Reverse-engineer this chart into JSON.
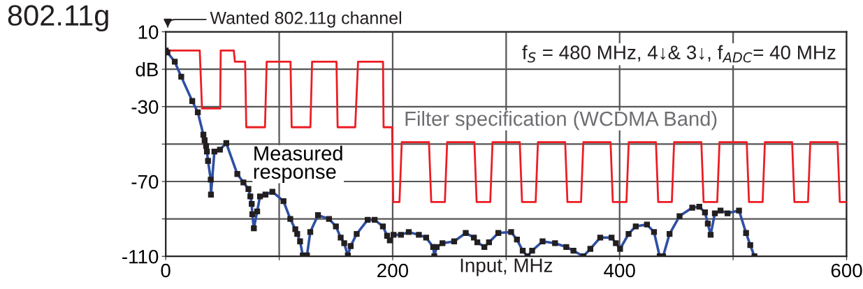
{
  "chart_data": {
    "type": "line",
    "title": "802.11g",
    "xlabel": "Input, MHz",
    "xlim": [
      0,
      600
    ],
    "ylim": [
      -110,
      10
    ],
    "xticks": [
      0,
      {
        "value": 100,
        "label": null
      },
      200,
      {
        "value": 300,
        "label": null
      },
      400,
      {
        "value": 500,
        "label": null
      },
      600
    ],
    "yticks": [
      10,
      {
        "value": -10,
        "label": "dB"
      },
      -30,
      {
        "value": -50,
        "label": null
      },
      -70,
      {
        "value": -90,
        "label": null
      },
      -110
    ],
    "grid": true,
    "legend": false,
    "marker": "square",
    "line_style": "solid",
    "annotations": [
      "Wanted 802.11g channel",
      "f$_{S}$ = 480 MHz, 4↓& 3↓, f$_{ADC}$= 40 MHz"
    ],
    "series": [
      {
        "name": "Filter specification (WCDMA Band)",
        "color": "#ed1c24",
        "marker": "none",
        "x": [
          0,
          30,
          32,
          48,
          48.5,
          60,
          61,
          70,
          71,
          87.5,
          89,
          110,
          111,
          127.5,
          129,
          150.5,
          151.5,
          167,
          169.5,
          191.5,
          192,
          199.5,
          200.5,
          206,
          208,
          232,
          234,
          246,
          248,
          272,
          274,
          286,
          288,
          312,
          314,
          326,
          328,
          352,
          354,
          366,
          368,
          392,
          394,
          406,
          408,
          432,
          434,
          446,
          448,
          472,
          474,
          486,
          488,
          512,
          514,
          526,
          528,
          552,
          554,
          566,
          568,
          592,
          594,
          600
        ],
        "values": [
          0,
          0,
          -31,
          -31,
          0,
          0,
          -6,
          -6,
          -41,
          -41,
          -6,
          -6,
          -41,
          -41,
          -6,
          -6,
          -41,
          -41,
          -6,
          -6,
          -41,
          -41,
          -81,
          -81,
          -49,
          -49,
          -81,
          -81,
          -49,
          -49,
          -81,
          -81,
          -49,
          -49,
          -81,
          -81,
          -49,
          -49,
          -81,
          -81,
          -49,
          -49,
          -81,
          -81,
          -49,
          -49,
          -81,
          -81,
          -49,
          -49,
          -81,
          -81,
          -49,
          -49,
          -81,
          -81,
          -49,
          -49,
          -81,
          -81,
          -49,
          -49,
          -81,
          -81
        ]
      },
      {
        "name": "Measured response",
        "color": "#2e4fa3",
        "x": [
          0,
          1.5,
          8,
          13.7,
          23.4,
          28.3,
          33.2,
          34.3,
          35.6,
          36.3,
          37.3,
          39.7,
          39.9,
          42.9,
          47.8,
          53.4,
          63.1,
          68.5,
          72.9,
          74.6,
          75.8,
          76.3,
          77.7,
          80.6,
          83.1,
          87.9,
          94,
          103.8,
          109.8,
          114.2,
          115.9,
          118.4,
          120.8,
          124.5,
          127.4,
          134.2,
          143.9,
          150,
          154.2,
          157.3,
          160.5,
          163,
          168.3,
          178,
          184.1,
          191.4,
          195.1,
          197.5,
          200.8,
          207.3,
          214.2,
          223.1,
          229.5,
          235.7,
          236.7,
          238.8,
          243.9,
          254.2,
          264.4,
          271.6,
          274.6,
          280.8,
          284.9,
          293.1,
          304.4,
          309.5,
          314.6,
          318.8,
          322.9,
          332.1,
          343.1,
          353,
          359.3,
          368,
          374.2,
          382.9,
          392.9,
          396.7,
          400.4,
          407.9,
          414.2,
          424.1,
          430.3,
          435.3,
          438.3,
          444,
          452.8,
          464,
          470.2,
          475.2,
          477.7,
          480.2,
          483.9,
          488.9,
          495.1,
          505.2,
          511.4,
          515.1,
          518.8
        ],
        "values": [
          0,
          -1,
          -6,
          -14,
          -27,
          -33,
          -45,
          -48,
          -51,
          -54,
          -59,
          -69,
          -77,
          -54,
          -53,
          -49.5,
          -66,
          -70.5,
          -74,
          -78,
          -82,
          -87.5,
          -95,
          -86,
          -78,
          -77,
          -75.5,
          -80.5,
          -90,
          -95.5,
          -98,
          -102,
          -109.5,
          -109.5,
          -97,
          -88,
          -90,
          -94,
          -100,
          -103,
          -109.5,
          -104.5,
          -98,
          -90.5,
          -90.5,
          -94,
          -99,
          -101.5,
          -98.5,
          -98.5,
          -97,
          -98.5,
          -100,
          -105,
          -110,
          -105,
          -103,
          -102,
          -97.5,
          -100,
          -102.5,
          -105,
          -102.5,
          -97.5,
          -97,
          -101,
          -107,
          -110,
          -107,
          -102,
          -103,
          -105,
          -107,
          -110,
          -106,
          -100,
          -100,
          -103,
          -106,
          -98,
          -94,
          -93,
          -97,
          -110,
          -110,
          -98,
          -88.5,
          -84,
          -83.5,
          -86.5,
          -92.5,
          -98.5,
          -87,
          -85.5,
          -87,
          -85.5,
          -97.5,
          -104,
          -110
        ]
      }
    ]
  }
}
